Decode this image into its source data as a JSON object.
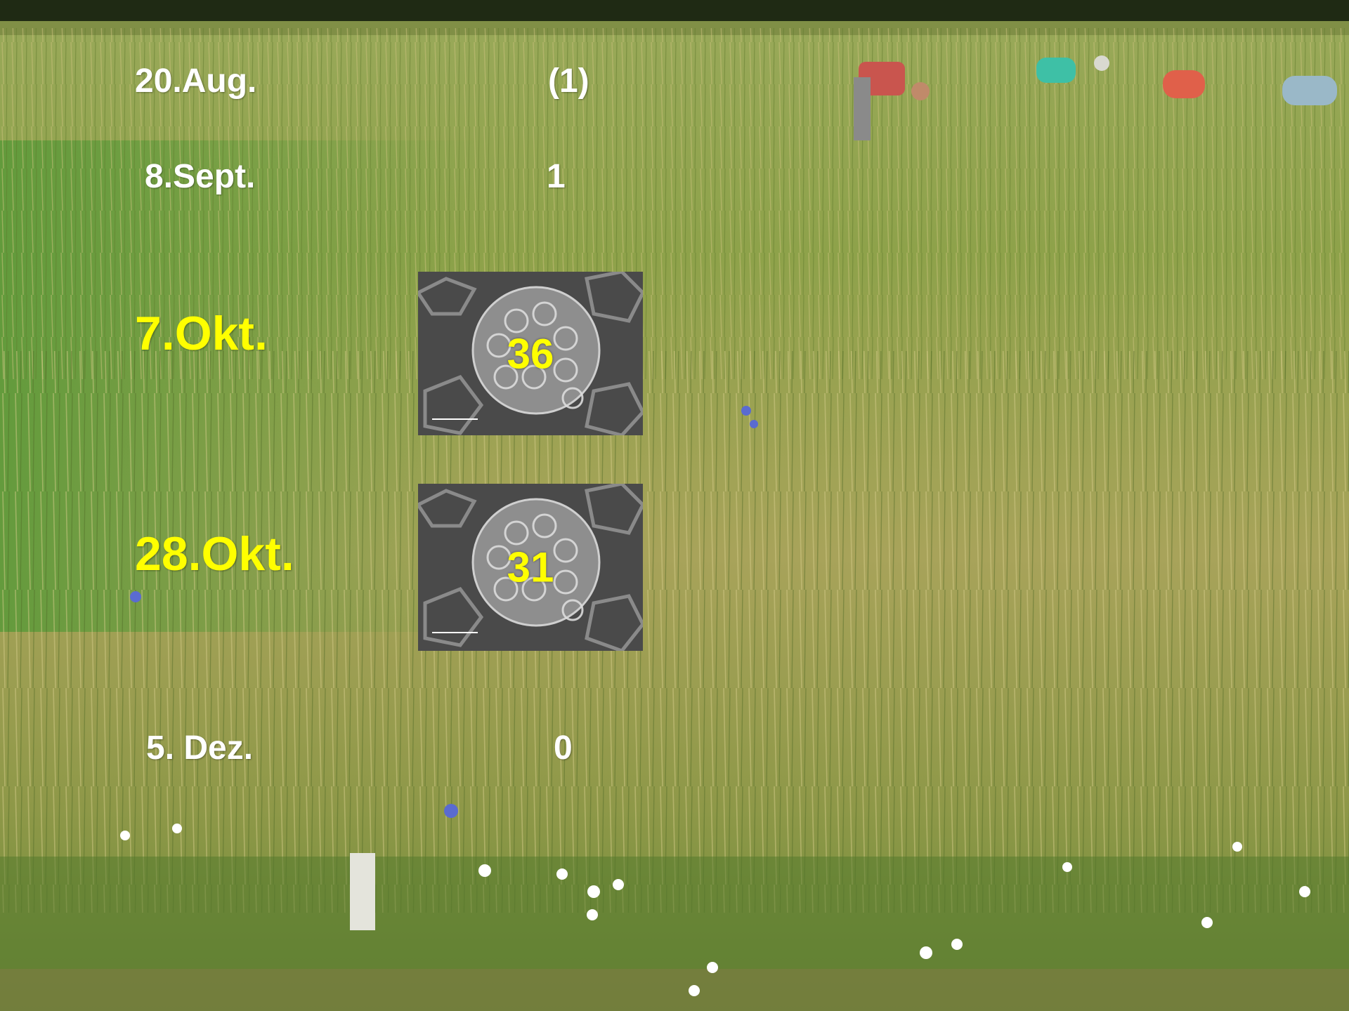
{
  "rows": [
    {
      "date": "20.Aug.",
      "count": "(1)"
    },
    {
      "date": "8.Sept.",
      "count": "1"
    },
    {
      "date": "7.Okt.",
      "count": "36"
    },
    {
      "date": "28.Okt.",
      "count": "31"
    },
    {
      "date": "5. Dez.",
      "count": "0"
    }
  ],
  "colors": {
    "highlight": "#ffff00",
    "normal": "#ffffff"
  }
}
